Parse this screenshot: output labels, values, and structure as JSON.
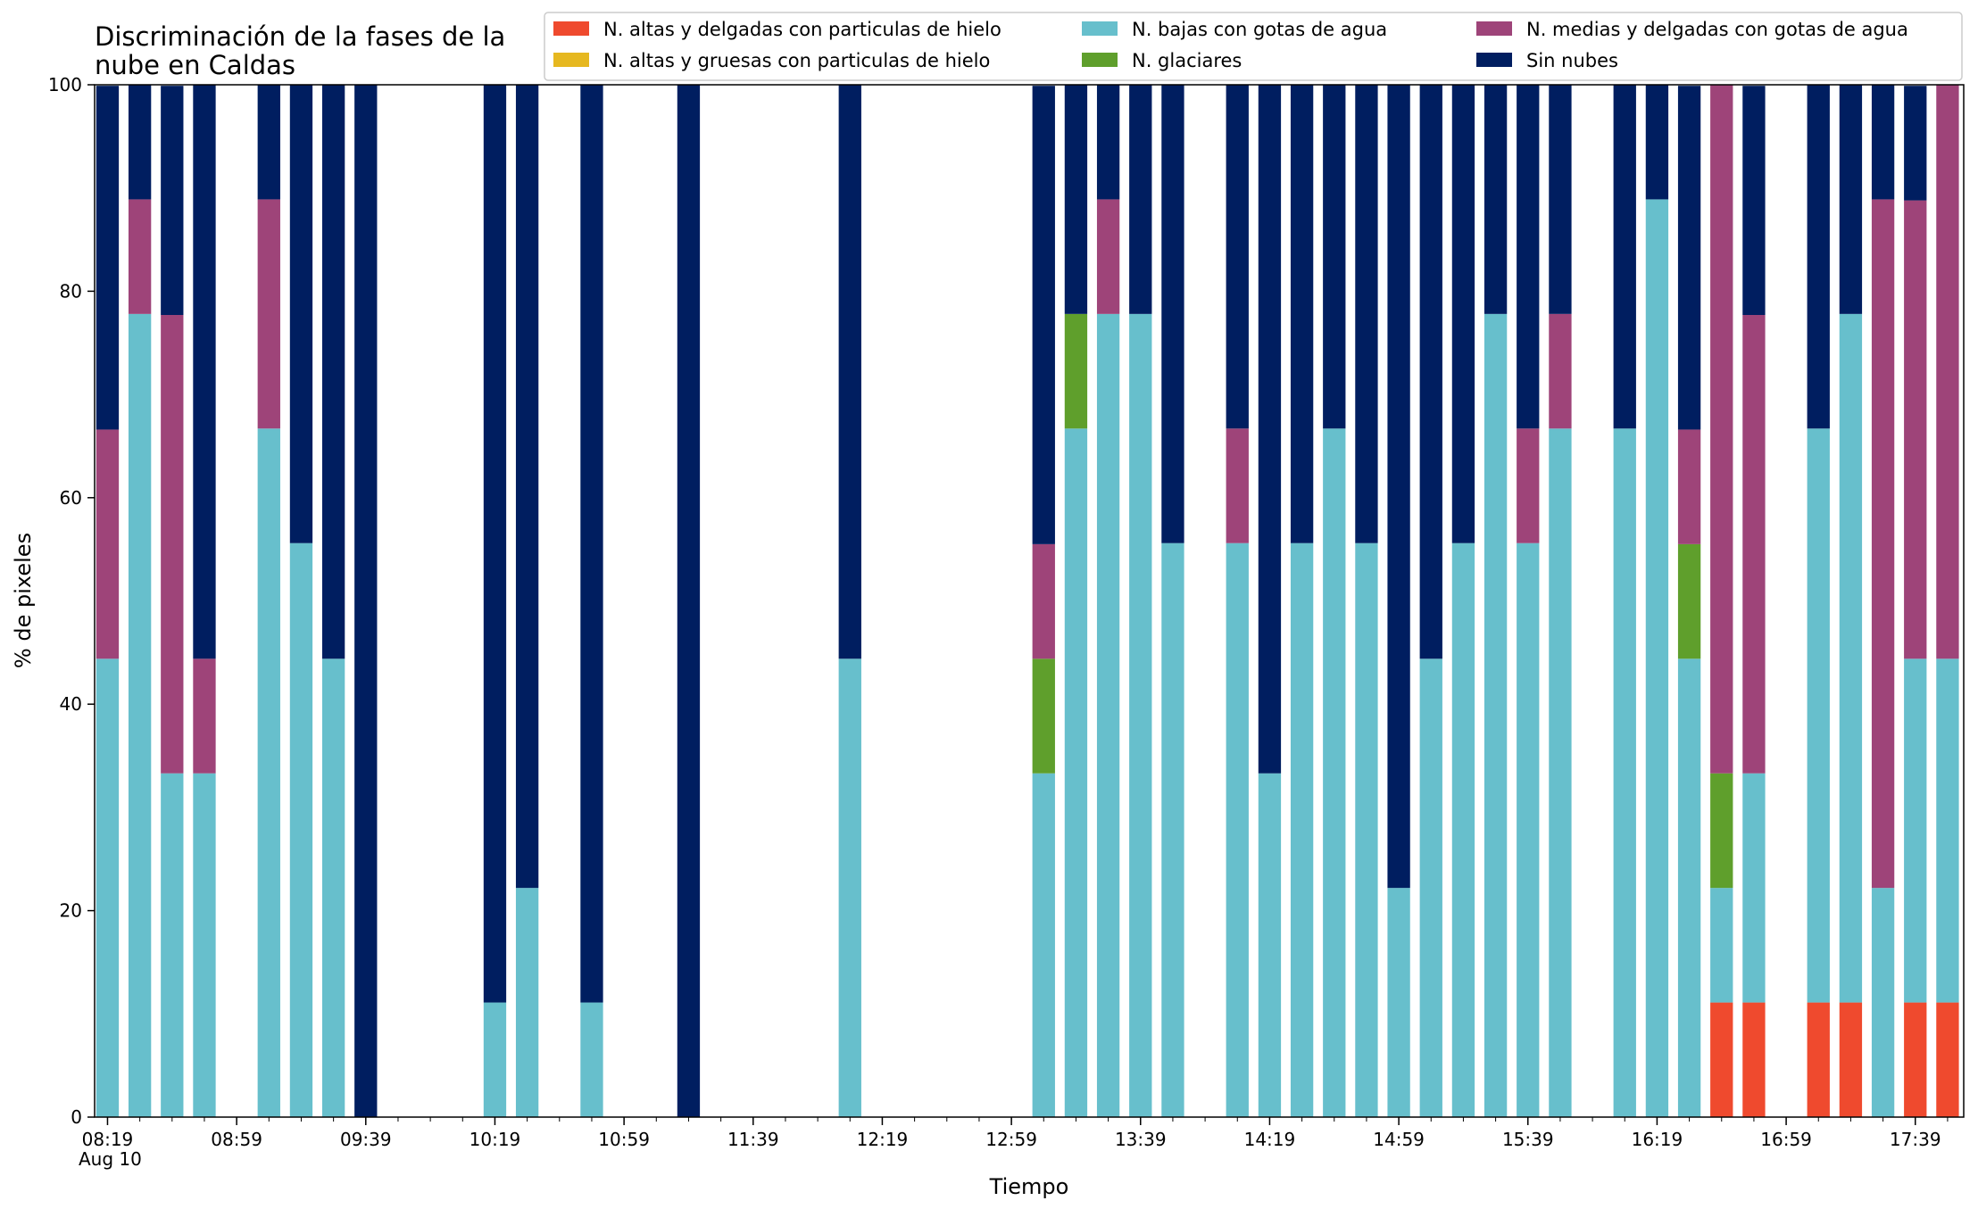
{
  "chart_data": {
    "type": "bar",
    "stacked": true,
    "title_lines": [
      "Discriminación de la fases de la",
      "nube en Caldas"
    ],
    "xlabel": "Tiempo",
    "ylabel": "% de pixeles",
    "ylim": [
      0,
      100
    ],
    "yticks": [
      "0",
      "20",
      "40",
      "60",
      "80",
      "100"
    ],
    "xticks": [
      "08:19",
      "08:59",
      "09:39",
      "10:19",
      "10:59",
      "11:39",
      "12:19",
      "12:59",
      "13:39",
      "14:19",
      "14:59",
      "15:39",
      "16:19",
      "16:59",
      "17:39"
    ],
    "x_date_label": "Aug 10",
    "grid": false,
    "legend": "top-right, 3 columns",
    "series": [
      {
        "name": "N. altas y delgadas con particulas de hielo",
        "color": "#ef4a2e"
      },
      {
        "name": "N. altas y gruesas con particulas de hielo",
        "color": "#e6b820"
      },
      {
        "name": "N. bajas con gotas de agua",
        "color": "#67bfcc"
      },
      {
        "name": "N. glaciares",
        "color": "#5f9f2c"
      },
      {
        "name": "N. medias y delgadas con gotas de agua",
        "color": "#9e4479"
      },
      {
        "name": "Sin nubes",
        "color": "#001e60"
      }
    ],
    "bars": [
      {
        "time": "08:19",
        "values": [
          0,
          0,
          44.4,
          0,
          22.2,
          33.3
        ]
      },
      {
        "time": "08:29",
        "values": [
          0,
          0,
          77.8,
          0,
          11.1,
          11.1
        ]
      },
      {
        "time": "08:39",
        "values": [
          0,
          0,
          33.3,
          0,
          44.4,
          22.2
        ]
      },
      {
        "time": "08:49",
        "values": [
          0,
          0,
          33.3,
          0,
          11.1,
          55.6
        ]
      },
      {
        "time": "09:09",
        "values": [
          0,
          0,
          66.7,
          0,
          22.2,
          11.1
        ]
      },
      {
        "time": "09:19",
        "values": [
          0,
          0,
          55.6,
          0,
          0,
          44.4
        ]
      },
      {
        "time": "09:29",
        "values": [
          0,
          0,
          44.4,
          0,
          0,
          55.6
        ]
      },
      {
        "time": "09:39",
        "values": [
          0,
          0,
          0,
          0,
          0,
          100
        ]
      },
      {
        "time": "10:19",
        "values": [
          0,
          0,
          11.1,
          0,
          0,
          88.9
        ]
      },
      {
        "time": "10:29",
        "values": [
          0,
          0,
          22.2,
          0,
          0,
          77.8
        ]
      },
      {
        "time": "10:49",
        "values": [
          0,
          0,
          11.1,
          0,
          0,
          88.9
        ]
      },
      {
        "time": "11:19",
        "values": [
          0,
          0,
          0,
          0,
          0,
          100
        ]
      },
      {
        "time": "12:09",
        "values": [
          0,
          0,
          44.4,
          0,
          0,
          55.6
        ]
      },
      {
        "time": "13:09",
        "values": [
          0,
          0,
          33.3,
          11.1,
          11.1,
          44.4
        ]
      },
      {
        "time": "13:19",
        "values": [
          0,
          0,
          66.7,
          11.1,
          0,
          22.2
        ]
      },
      {
        "time": "13:29",
        "values": [
          0,
          0,
          77.8,
          0,
          11.1,
          11.1
        ]
      },
      {
        "time": "13:39",
        "values": [
          0,
          0,
          77.8,
          0,
          0,
          22.2
        ]
      },
      {
        "time": "13:49",
        "values": [
          0,
          0,
          55.6,
          0,
          0,
          44.4
        ]
      },
      {
        "time": "14:09",
        "values": [
          0,
          0,
          55.6,
          0,
          11.1,
          33.3
        ]
      },
      {
        "time": "14:19",
        "values": [
          0,
          0,
          33.3,
          0,
          0,
          66.7
        ]
      },
      {
        "time": "14:29",
        "values": [
          0,
          0,
          55.6,
          0,
          0,
          44.4
        ]
      },
      {
        "time": "14:39",
        "values": [
          0,
          0,
          66.7,
          0,
          0,
          33.3
        ]
      },
      {
        "time": "14:49",
        "values": [
          0,
          0,
          55.6,
          0,
          0,
          44.4
        ]
      },
      {
        "time": "14:59",
        "values": [
          0,
          0,
          22.2,
          0,
          0,
          77.8
        ]
      },
      {
        "time": "15:09",
        "values": [
          0,
          0,
          44.4,
          0,
          0,
          55.6
        ]
      },
      {
        "time": "15:19",
        "values": [
          0,
          0,
          55.6,
          0,
          0,
          44.4
        ]
      },
      {
        "time": "15:29",
        "values": [
          0,
          0,
          77.8,
          0,
          0,
          22.2
        ]
      },
      {
        "time": "15:39",
        "values": [
          0,
          0,
          55.6,
          0,
          11.1,
          33.3
        ]
      },
      {
        "time": "15:49",
        "values": [
          0,
          0,
          66.7,
          0,
          11.1,
          22.2
        ]
      },
      {
        "time": "16:09",
        "values": [
          0,
          0,
          66.7,
          0,
          0,
          33.3
        ]
      },
      {
        "time": "16:19",
        "values": [
          0,
          0,
          88.9,
          0,
          0,
          11.1
        ]
      },
      {
        "time": "16:29",
        "values": [
          0,
          0,
          44.4,
          11.1,
          11.1,
          33.3
        ]
      },
      {
        "time": "16:39",
        "values": [
          11.1,
          0,
          11.1,
          11.1,
          66.7,
          0
        ]
      },
      {
        "time": "16:49",
        "values": [
          11.1,
          0,
          22.2,
          0,
          44.4,
          22.2
        ]
      },
      {
        "time": "17:09",
        "values": [
          11.1,
          0,
          55.6,
          0,
          0,
          33.3
        ]
      },
      {
        "time": "17:19",
        "values": [
          11.1,
          0,
          66.7,
          0,
          0,
          22.2
        ]
      },
      {
        "time": "17:29",
        "values": [
          0,
          0,
          22.2,
          0,
          66.7,
          11.1
        ]
      },
      {
        "time": "17:39",
        "values": [
          11.1,
          0,
          33.3,
          0,
          44.4,
          11.1
        ]
      },
      {
        "time": "17:49",
        "values": [
          11.1,
          0,
          33.3,
          0,
          55.6,
          0
        ]
      }
    ]
  }
}
